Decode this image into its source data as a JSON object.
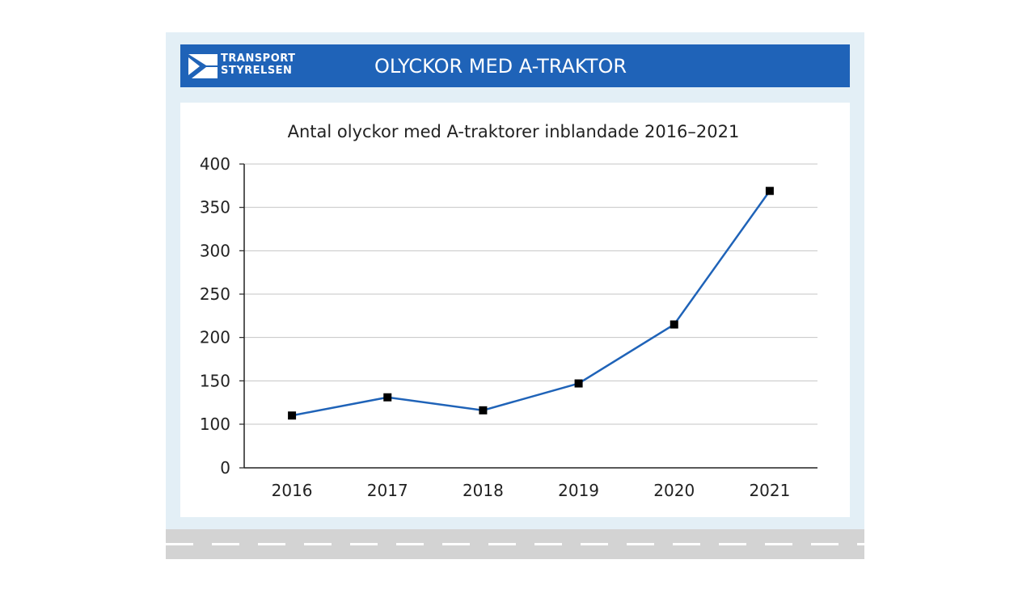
{
  "header": {
    "logo_line1": "TRANSPORT",
    "logo_line2": "STYRELSEN",
    "title": "OLYCKOR MED A-TRAKTOR"
  },
  "colors": {
    "brand": "#1f63b8",
    "line": "#1f63b8",
    "marker": "#000000",
    "card_bg": "#e3eff6",
    "road": "#d3d3d3"
  },
  "chart_data": {
    "type": "line",
    "title": "Antal olyckor med A-traktorer inblandade 2016–2021",
    "xlabel": "",
    "ylabel": "",
    "categories": [
      "2016",
      "2017",
      "2018",
      "2019",
      "2020",
      "2021"
    ],
    "series": [
      {
        "values": [
          110,
          131,
          116,
          147,
          215,
          369
        ]
      }
    ],
    "yticks": [
      0,
      100,
      150,
      200,
      250,
      300,
      350,
      400
    ],
    "ylim": [
      0,
      400
    ],
    "axis_break": "0–100 segment compressed",
    "grid": true,
    "legend": "none"
  }
}
